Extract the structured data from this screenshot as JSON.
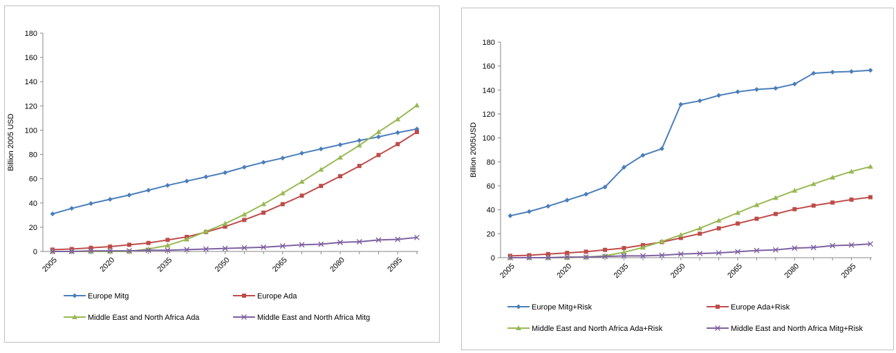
{
  "chart_data": [
    {
      "type": "line",
      "ylabel": "Billion 2005 USD",
      "ylim": [
        0,
        180
      ],
      "yticks": [
        0,
        20,
        40,
        60,
        80,
        100,
        120,
        140,
        160,
        180
      ],
      "x": [
        2005,
        2010,
        2015,
        2020,
        2025,
        2030,
        2035,
        2040,
        2045,
        2050,
        2055,
        2060,
        2065,
        2070,
        2075,
        2080,
        2085,
        2090,
        2095,
        2100
      ],
      "xticks": [
        "2005",
        "2020",
        "2035",
        "2050",
        "2065",
        "2080",
        "2095"
      ],
      "grid": false,
      "legend": "bottom",
      "series": [
        {
          "name": "Europe Mitg",
          "color": "#4a7ebb",
          "marker": "diamond",
          "values": [
            31,
            35.5,
            39.5,
            43,
            46.5,
            50.5,
            54.5,
            58,
            61.5,
            65,
            69.5,
            73.5,
            77,
            81,
            84.5,
            88,
            91.5,
            94.5,
            98,
            101
          ]
        },
        {
          "name": "Europe Ada",
          "color": "#be4b48",
          "marker": "square",
          "values": [
            1.5,
            2,
            3,
            4,
            5.5,
            7,
            9.5,
            12,
            16,
            20.5,
            26,
            32,
            39,
            46,
            54,
            62,
            70.5,
            79.5,
            88.5,
            98.5
          ]
        },
        {
          "name": "Middle East and North Africa Ada",
          "color": "#98b954",
          "marker": "triangle",
          "values": [
            0,
            0,
            0,
            0,
            0,
            2,
            5,
            10,
            16.5,
            23,
            30.5,
            39,
            48,
            57.5,
            67.5,
            77.5,
            87.5,
            98.5,
            109,
            120.5
          ]
        },
        {
          "name": "Middle East and North Africa Mitg",
          "color": "#7d60a0",
          "marker": "x",
          "values": [
            0,
            0,
            0.5,
            0.5,
            0.5,
            1,
            1,
            1.5,
            2,
            2.5,
            3,
            3.5,
            4.5,
            5.5,
            6,
            7.5,
            8,
            9.5,
            10,
            11.5
          ]
        }
      ]
    },
    {
      "type": "line",
      "ylabel": "Billion  2005USD",
      "ylim": [
        0,
        180
      ],
      "yticks": [
        0,
        20,
        40,
        60,
        80,
        100,
        120,
        140,
        160,
        180
      ],
      "x": [
        2005,
        2010,
        2015,
        2020,
        2025,
        2030,
        2035,
        2040,
        2045,
        2050,
        2055,
        2060,
        2065,
        2070,
        2075,
        2080,
        2085,
        2090,
        2095,
        2100
      ],
      "xticks": [
        "2005",
        "2020",
        "2035",
        "2050",
        "2065",
        "2080",
        "2095"
      ],
      "grid": false,
      "legend": "bottom",
      "series": [
        {
          "name": "Europe Mitg+Risk",
          "color": "#4a7ebb",
          "marker": "diamond",
          "values": [
            35,
            38.5,
            43,
            48,
            53,
            59,
            75.5,
            85.5,
            91,
            128,
            131,
            135.5,
            138.5,
            140.5,
            141.5,
            145,
            154,
            155,
            155.5,
            156.5
          ]
        },
        {
          "name": "Europe Ada+Risk",
          "color": "#be4b48",
          "marker": "square",
          "values": [
            1.5,
            2,
            3,
            4,
            5,
            6.5,
            8,
            10.5,
            13,
            16.5,
            20,
            24.5,
            28.5,
            32.5,
            36.5,
            40.5,
            43.5,
            46,
            48.5,
            50.5
          ]
        },
        {
          "name": "Middle East and North Africa Ada+Risk",
          "color": "#98b954",
          "marker": "triangle",
          "values": [
            0,
            0,
            0,
            0,
            0.5,
            1.5,
            4.5,
            8.5,
            13.5,
            19,
            24.5,
            31,
            37.5,
            44,
            50,
            56,
            61.5,
            67,
            72,
            76
          ]
        },
        {
          "name": "Middle East and North Africa Mitg+Risk",
          "color": "#7d60a0",
          "marker": "x",
          "values": [
            0,
            0,
            0,
            0.5,
            0.5,
            1,
            1.5,
            1.5,
            2,
            3,
            3.5,
            4,
            5,
            6,
            6.5,
            8,
            8.5,
            10,
            10.5,
            11.5
          ]
        }
      ]
    }
  ]
}
